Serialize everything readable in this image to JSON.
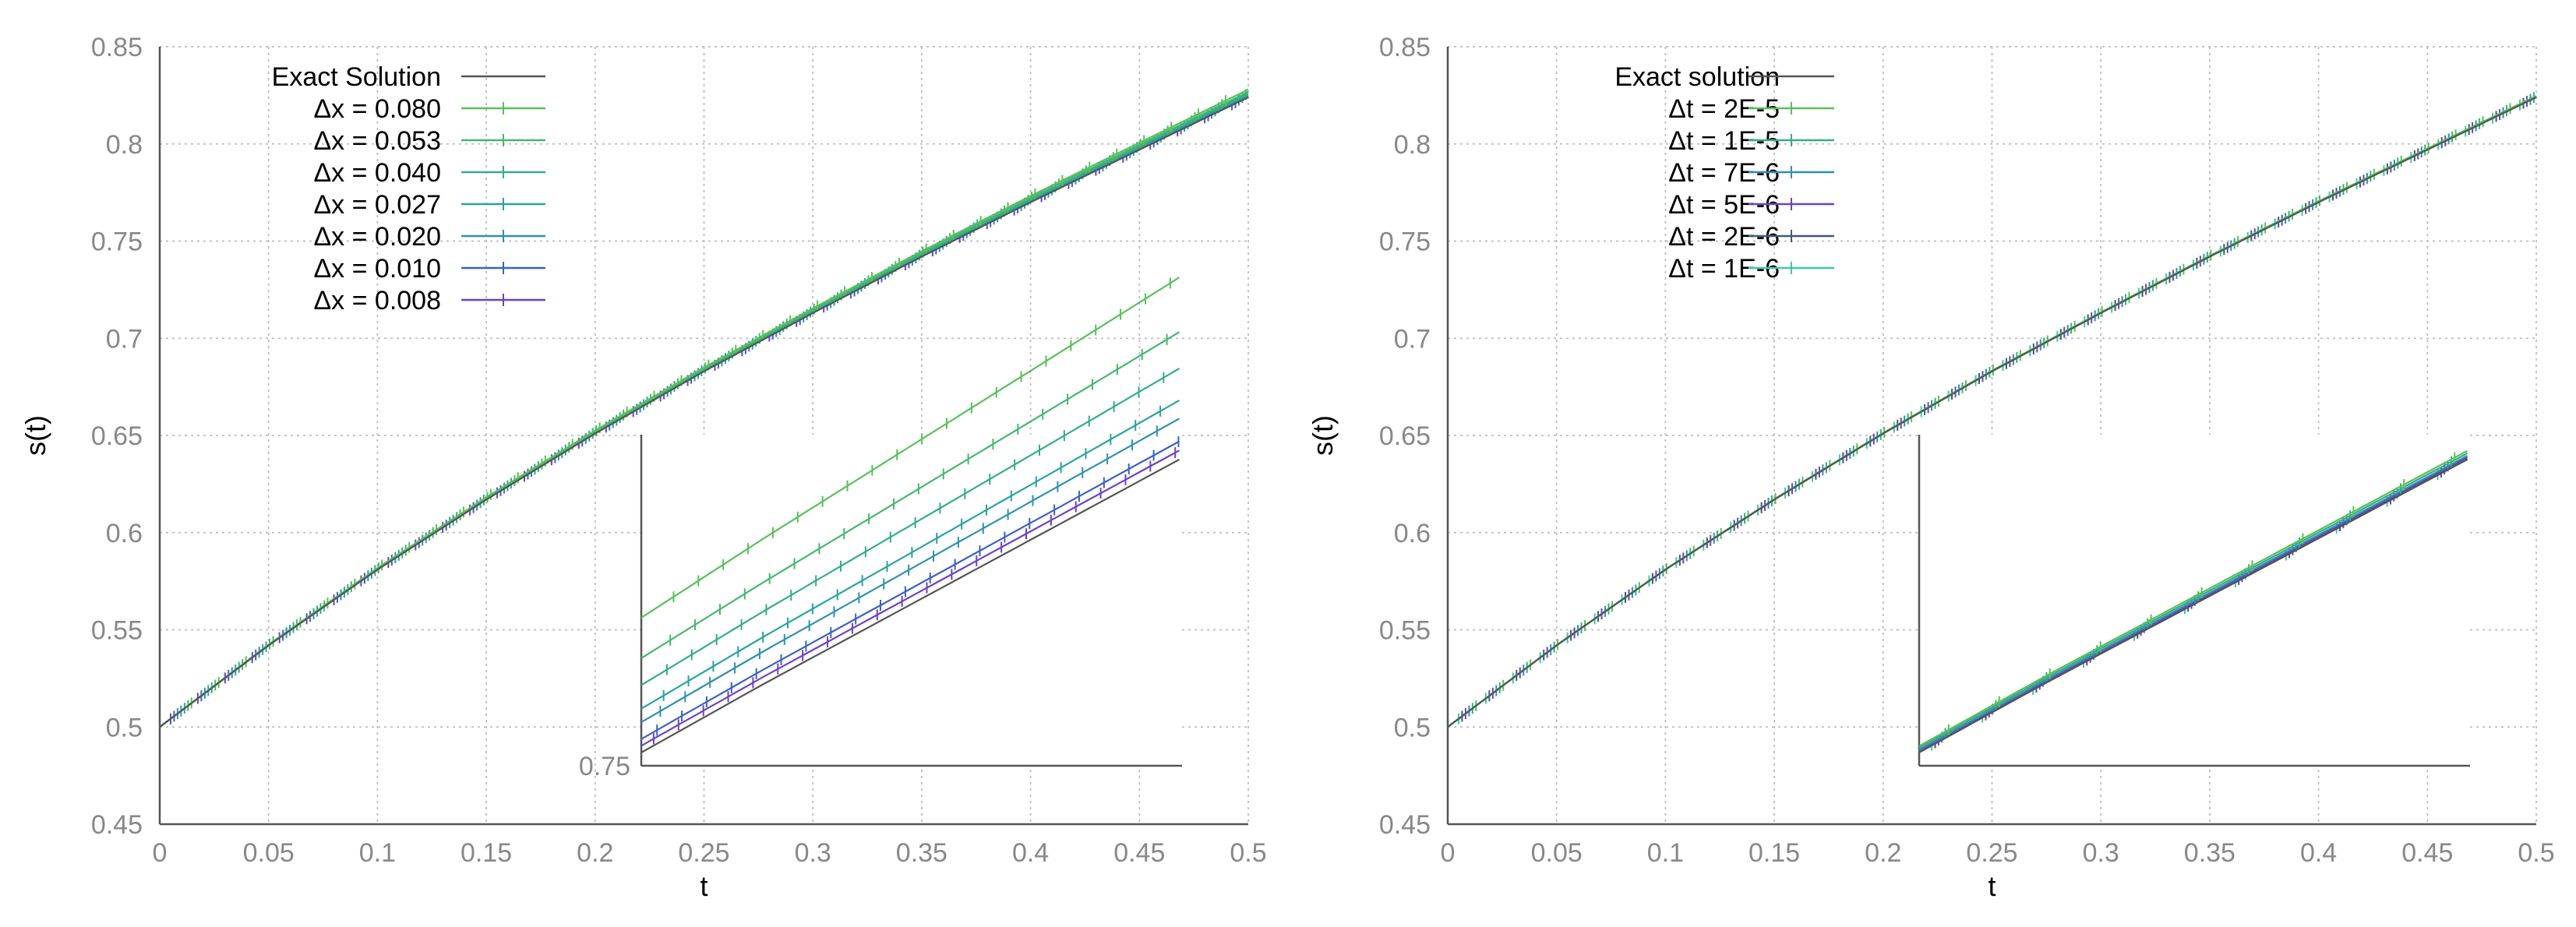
{
  "chart_data": [
    {
      "type": "line",
      "panel": "left",
      "title": "",
      "xlabel": "t",
      "ylabel": "s(t)",
      "xlim": [
        0,
        0.5
      ],
      "ylim": [
        0.45,
        0.85
      ],
      "x_ticks": [
        "0",
        "0.05",
        "0.1",
        "0.15",
        "0.2",
        "0.25",
        "0.3",
        "0.35",
        "0.4",
        "0.45",
        "0.5"
      ],
      "y_ticks": [
        "0.45",
        "0.5",
        "0.55",
        "0.6",
        "0.65",
        "0.7",
        "0.75",
        "0.8",
        "0.85"
      ],
      "grid": true,
      "legend_position": "top-left",
      "exact": {
        "name": "Exact Solution",
        "color": "#555555",
        "t": [
          0,
          0.05,
          0.1,
          0.15,
          0.2,
          0.25,
          0.3,
          0.35,
          0.4,
          0.45,
          0.5
        ],
        "s": [
          0.5,
          0.542,
          0.581,
          0.617,
          0.651,
          0.683,
          0.713,
          0.742,
          0.77,
          0.797,
          0.824
        ]
      },
      "series": [
        {
          "name": "Δx = 0.080",
          "color": "#59c05a",
          "offset": 0.004
        },
        {
          "name": "Δx = 0.053",
          "color": "#45b86f",
          "offset": 0.0028
        },
        {
          "name": "Δx = 0.040",
          "color": "#35ad8a",
          "offset": 0.002
        },
        {
          "name": "Δx = 0.027",
          "color": "#2aa3a0",
          "offset": 0.0013
        },
        {
          "name": "Δx = 0.020",
          "color": "#2f8fb4",
          "offset": 0.0009
        },
        {
          "name": "Δx = 0.010",
          "color": "#3b62c4",
          "offset": 0.0004
        },
        {
          "name": "Δx = 0.008",
          "color": "#6a43c8",
          "offset": 0.0002
        }
      ],
      "inset": {
        "y_tick": "0.75",
        "t_range": [
          0.37,
          0.5
        ],
        "y_range": [
          0.75,
          0.83
        ]
      }
    },
    {
      "type": "line",
      "panel": "right",
      "title": "",
      "xlabel": "t",
      "ylabel": "s(t)",
      "xlim": [
        0,
        0.5
      ],
      "ylim": [
        0.45,
        0.85
      ],
      "x_ticks": [
        "0",
        "0.05",
        "0.1",
        "0.15",
        "0.2",
        "0.25",
        "0.3",
        "0.35",
        "0.4",
        "0.45",
        "0.5"
      ],
      "y_ticks": [
        "0.45",
        "0.5",
        "0.55",
        "0.6",
        "0.65",
        "0.7",
        "0.75",
        "0.8",
        "0.85"
      ],
      "grid": true,
      "legend_position": "top-left",
      "exact": {
        "name": "Exact solution",
        "color": "#555555",
        "t": [
          0,
          0.05,
          0.1,
          0.15,
          0.2,
          0.25,
          0.3,
          0.35,
          0.4,
          0.45,
          0.5
        ],
        "s": [
          0.5,
          0.542,
          0.581,
          0.617,
          0.651,
          0.683,
          0.713,
          0.742,
          0.77,
          0.797,
          0.824
        ]
      },
      "series": [
        {
          "name": "Δt = 2E-5",
          "color": "#59c05a",
          "offset": 0.0007
        },
        {
          "name": "Δt = 1E-5",
          "color": "#35ad8a",
          "offset": 0.0005
        },
        {
          "name": "Δt = 7E-6",
          "color": "#2f8fb4",
          "offset": 0.0003
        },
        {
          "name": "Δt = 5E-6",
          "color": "#6a43c8",
          "offset": 0.0002
        },
        {
          "name": "Δt = 2E-6",
          "color": "#3d5a7a",
          "offset": 0.0001
        },
        {
          "name": "Δt = 1E-6",
          "color": "#3ec9a8",
          "offset": 5e-05
        }
      ],
      "inset": {
        "y_tick": "",
        "t_range": [
          0.37,
          0.5
        ],
        "y_range": [
          0.75,
          0.83
        ]
      }
    }
  ]
}
